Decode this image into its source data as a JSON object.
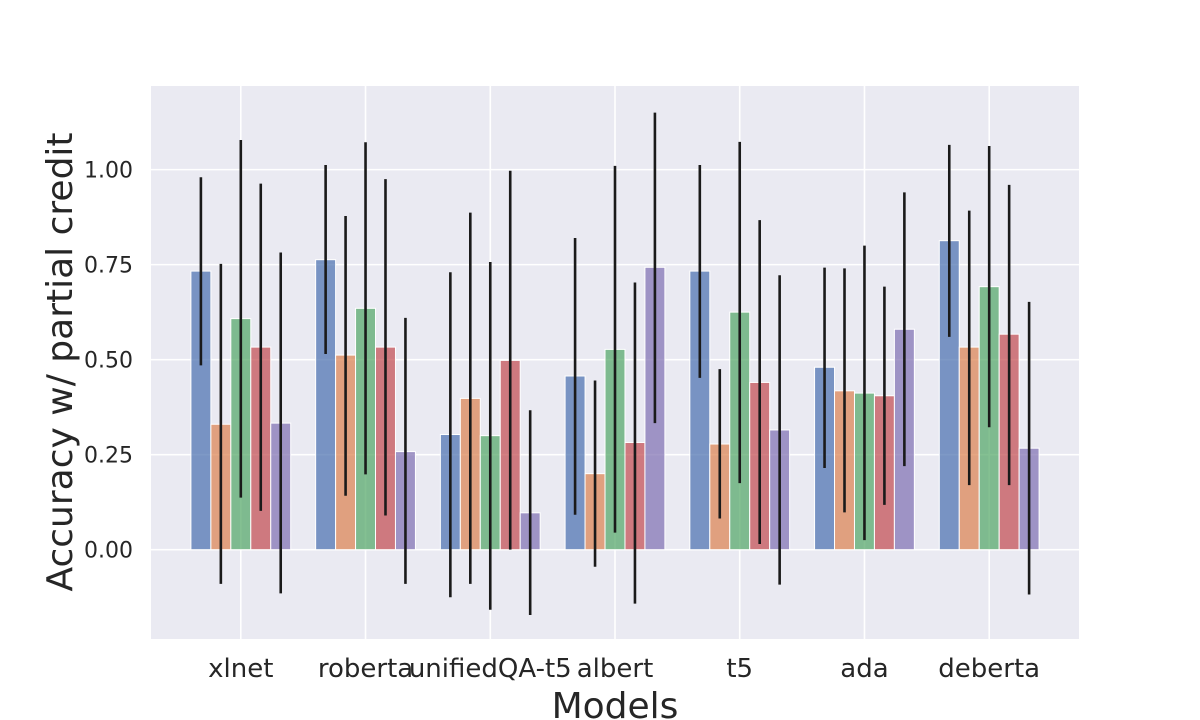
{
  "chart_data": {
    "type": "bar",
    "title": "",
    "xlabel": "Models",
    "ylabel": "Accuracy w/ partial credit",
    "categories": [
      "xlnet",
      "roberta",
      "unifiedQA-t5",
      "albert",
      "t5",
      "ada",
      "deberta"
    ],
    "ylim": [
      -0.235,
      1.22
    ],
    "yticks": [
      0.0,
      0.25,
      0.5,
      0.75,
      1.0
    ],
    "ytick_labels": [
      "0.00",
      "0.25",
      "0.50",
      "0.75",
      "1.00"
    ],
    "grid": true,
    "legend": "none",
    "series": [
      {
        "color": "#4c72b0",
        "values": [
          0.733,
          0.763,
          0.303,
          0.457,
          0.733,
          0.48,
          0.813
        ],
        "err_low": [
          0.485,
          0.515,
          -0.125,
          0.092,
          0.452,
          0.215,
          0.56
        ],
        "err_high": [
          0.98,
          1.012,
          0.73,
          0.82,
          1.012,
          0.742,
          1.065
        ]
      },
      {
        "color": "#dd8452",
        "values": [
          0.33,
          0.512,
          0.398,
          0.2,
          0.278,
          0.418,
          0.533
        ],
        "err_low": [
          -0.09,
          0.142,
          -0.09,
          -0.045,
          0.082,
          0.098,
          0.17
        ],
        "err_high": [
          0.752,
          0.878,
          0.887,
          0.445,
          0.475,
          0.74,
          0.892
        ]
      },
      {
        "color": "#55a868",
        "values": [
          0.608,
          0.635,
          0.3,
          0.527,
          0.625,
          0.412,
          0.692
        ],
        "err_low": [
          0.137,
          0.198,
          -0.158,
          0.045,
          0.175,
          0.025,
          0.322
        ],
        "err_high": [
          1.078,
          1.072,
          0.757,
          1.01,
          1.073,
          0.8,
          1.062
        ]
      },
      {
        "color": "#c44e52",
        "values": [
          0.533,
          0.533,
          0.498,
          0.282,
          0.44,
          0.405,
          0.567
        ],
        "err_low": [
          0.102,
          0.09,
          0.0,
          -0.142,
          0.015,
          0.118,
          0.17
        ],
        "err_high": [
          0.963,
          0.975,
          0.997,
          0.703,
          0.867,
          0.692,
          0.96
        ]
      },
      {
        "color": "#8172b3",
        "values": [
          0.333,
          0.258,
          0.097,
          0.743,
          0.315,
          0.58,
          0.267
        ],
        "err_low": [
          -0.115,
          -0.09,
          -0.172,
          0.333,
          -0.092,
          0.22,
          -0.118
        ],
        "err_high": [
          0.782,
          0.61,
          0.367,
          1.15,
          0.722,
          0.94,
          0.652
        ]
      }
    ]
  },
  "colors": {
    "plot_background": "#eaeaf2",
    "grid": "#ffffff",
    "error_bar": "#1a1a1a",
    "text": "#262626"
  }
}
